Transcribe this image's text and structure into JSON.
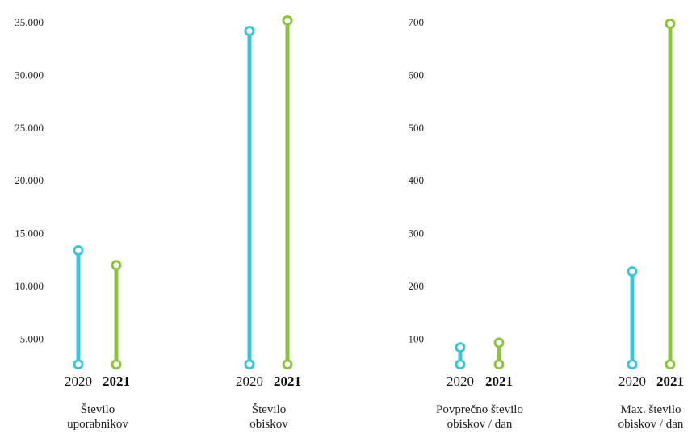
{
  "colors": {
    "series_2020": "#3cc4dc",
    "series_2021": "#8cc43f"
  },
  "chart_data": [
    {
      "type": "range-bar",
      "y_ticks": [
        5000,
        10000,
        15000,
        20000,
        25000,
        30000,
        35000
      ],
      "y_tick_labels": [
        "5.000",
        "10.000",
        "15.000",
        "20.000",
        "25.000",
        "30.000",
        "35.000"
      ],
      "ylim": [
        2500,
        36000
      ],
      "groups": [
        {
          "category": [
            "Število",
            "uporabnikov"
          ],
          "bars": [
            {
              "year": "2020",
              "bold": false,
              "low": 2600,
              "high": 13400
            },
            {
              "year": "2021",
              "bold": true,
              "low": 2600,
              "high": 12000
            }
          ]
        },
        {
          "category": [
            "Število",
            "obiskov"
          ],
          "bars": [
            {
              "year": "2020",
              "bold": false,
              "low": 2600,
              "high": 34200
            },
            {
              "year": "2021",
              "bold": true,
              "low": 2600,
              "high": 35200
            }
          ]
        }
      ]
    },
    {
      "type": "range-bar",
      "y_ticks": [
        100,
        200,
        300,
        400,
        500,
        600,
        700
      ],
      "y_tick_labels": [
        "100",
        "200",
        "300",
        "400",
        "500",
        "600",
        "700"
      ],
      "ylim": [
        50,
        720
      ],
      "groups": [
        {
          "category": [
            "Povprečno število",
            "obiskov / dan"
          ],
          "bars": [
            {
              "year": "2020",
              "bold": false,
              "low": 52,
              "high": 84
            },
            {
              "year": "2021",
              "bold": true,
              "low": 52,
              "high": 93
            }
          ]
        },
        {
          "category": [
            "Max. število",
            "obiskov / dan"
          ],
          "bars": [
            {
              "year": "2020",
              "bold": false,
              "low": 52,
              "high": 228
            },
            {
              "year": "2021",
              "bold": true,
              "low": 52,
              "high": 698
            }
          ]
        }
      ]
    }
  ]
}
